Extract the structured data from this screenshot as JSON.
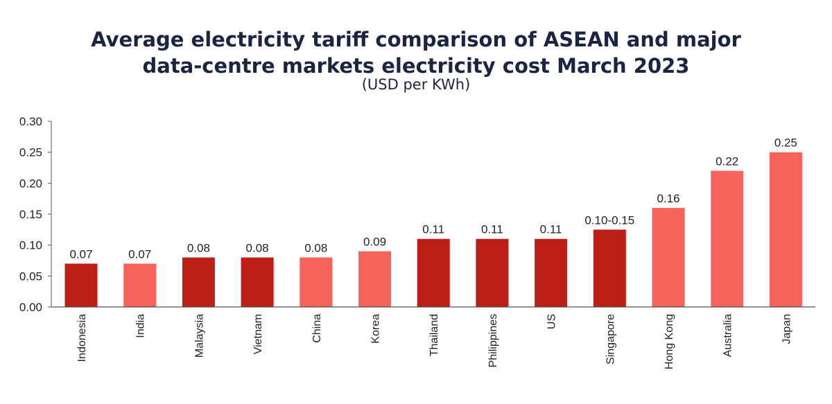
{
  "chart_data": {
    "type": "bar",
    "title": "Average electricity tariff comparison of ASEAN and major data-centre markets electricity cost March 2023",
    "title_lines": [
      "Average electricity tariff comparison of ASEAN and major",
      "data-centre markets electricity cost March 2023"
    ],
    "subtitle": "(USD per KWh)",
    "categories": [
      "Indonesia",
      "India",
      "Malaysia",
      "Vietnam",
      "China",
      "Korea",
      "Thailand",
      "Philippines",
      "US",
      "Singapore",
      "Hong Kong",
      "Australia",
      "Japan"
    ],
    "values": [
      0.07,
      0.07,
      0.08,
      0.08,
      0.08,
      0.09,
      0.11,
      0.11,
      0.11,
      0.125,
      0.16,
      0.22,
      0.25
    ],
    "data_labels": [
      "0.07",
      "0.07",
      "0.08",
      "0.08",
      "0.08",
      "0.09",
      "0.11",
      "0.11",
      "0.11",
      "0.10-0.15",
      "0.16",
      "0.22",
      "0.25"
    ],
    "groups": [
      "asean",
      "other",
      "asean",
      "asean",
      "other",
      "other",
      "asean",
      "asean",
      "asean",
      "asean",
      "other",
      "other",
      "other"
    ],
    "colors": {
      "asean": "#bb1e15",
      "other": "#f7635b",
      "title": "#1b2541"
    },
    "ylim": [
      0,
      0.3
    ],
    "yticks": [
      "0.00",
      "0.05",
      "0.10",
      "0.15",
      "0.20",
      "0.25",
      "0.30"
    ],
    "grid": false,
    "legend": "none"
  }
}
